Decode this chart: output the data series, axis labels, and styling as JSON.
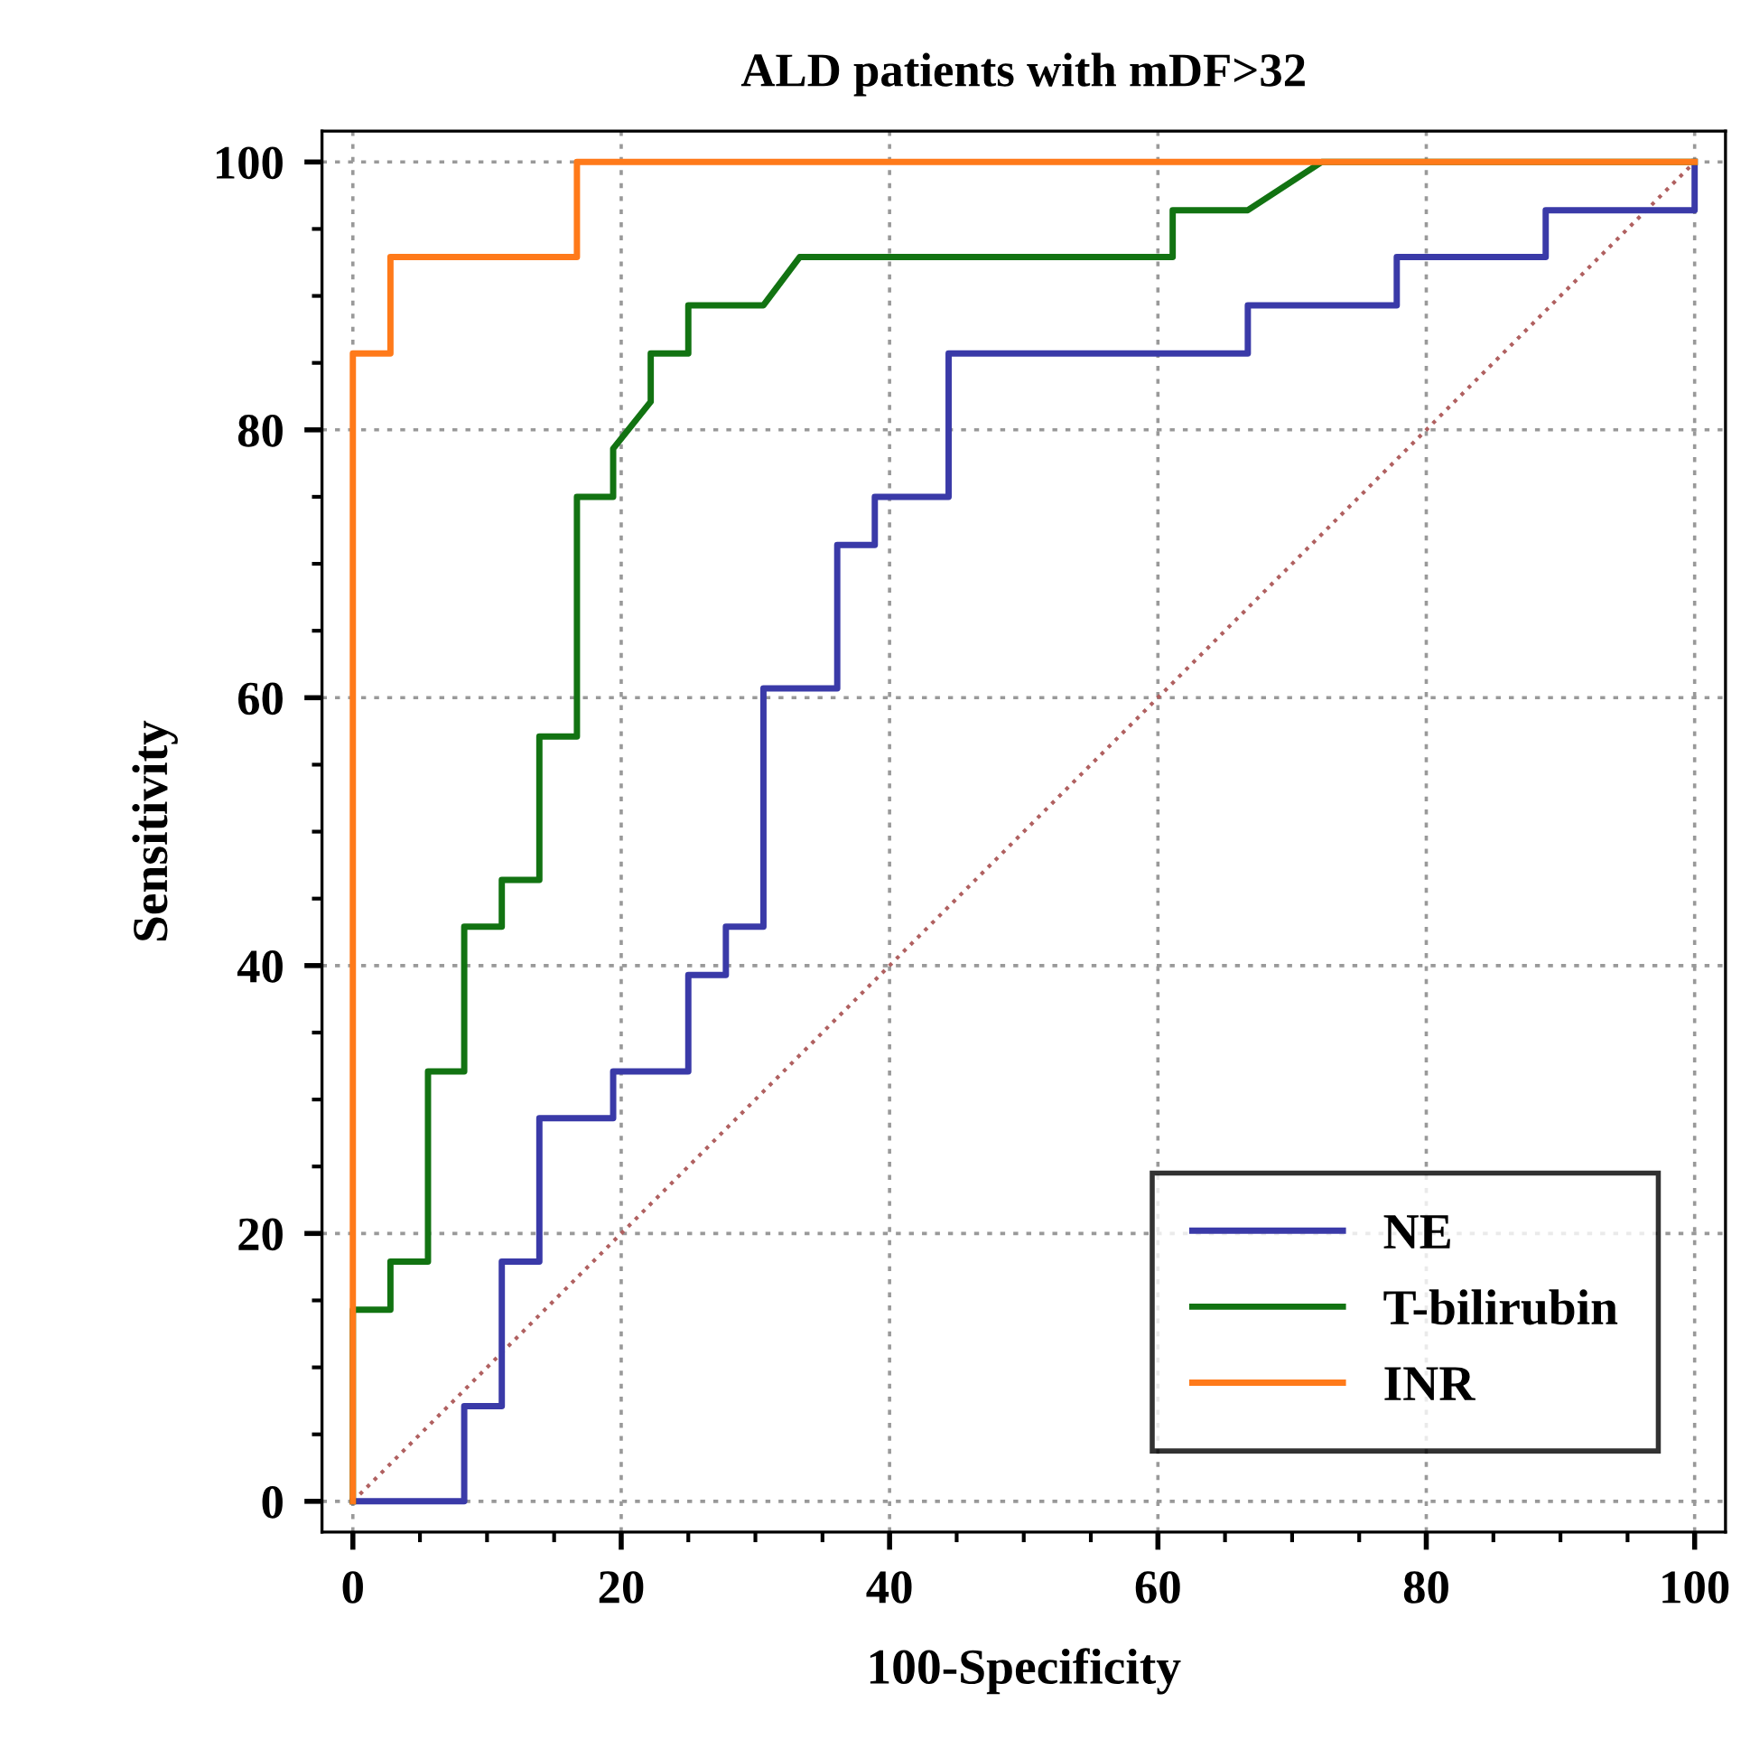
{
  "chart_data": {
    "type": "line",
    "title": "ALD patients with mDF>32",
    "xlabel": "100-Specificity",
    "ylabel": "Sensitivity",
    "xlim": [
      -2.3,
      102.3
    ],
    "ylim": [
      -2.3,
      102.3
    ],
    "xticks": [
      0,
      20,
      40,
      60,
      80,
      100
    ],
    "yticks": [
      0,
      20,
      40,
      60,
      80,
      100
    ],
    "grid": true,
    "legend": "bottom right",
    "marker": "none",
    "line_style": "solid",
    "series": [
      {
        "name": "NE",
        "color": "#3a3aa8",
        "x": [
          0,
          8.3,
          8.3,
          11.1,
          11.1,
          13.9,
          13.9,
          19.4,
          19.4,
          25,
          25,
          27.8,
          27.8,
          30.6,
          30.6,
          36.1,
          36.1,
          38.9,
          38.9,
          44.4,
          44.4,
          66.7,
          66.7,
          77.8,
          77.8,
          88.9,
          88.9,
          100,
          100
        ],
        "values": [
          0,
          0,
          7.1,
          7.1,
          17.9,
          17.9,
          28.6,
          28.6,
          32.1,
          32.1,
          39.3,
          39.3,
          42.9,
          42.9,
          60.7,
          60.7,
          71.4,
          71.4,
          75,
          75,
          85.7,
          85.7,
          89.3,
          89.3,
          92.9,
          92.9,
          96.4,
          96.4,
          100
        ]
      },
      {
        "name": "T-bilirubin",
        "color": "#127312",
        "x": [
          0,
          0,
          2.8,
          2.8,
          5.6,
          5.6,
          8.3,
          8.3,
          11.1,
          11.1,
          13.9,
          13.9,
          16.7,
          16.7,
          19.4,
          19.4,
          22.2,
          22.2,
          25,
          25,
          30.6,
          33.3,
          61.1,
          61.1,
          66.7,
          72.2,
          100
        ],
        "values": [
          0,
          14.3,
          14.3,
          17.9,
          17.9,
          32.1,
          32.1,
          42.9,
          42.9,
          46.4,
          46.4,
          57.1,
          57.1,
          75,
          75,
          78.6,
          82.1,
          85.7,
          85.7,
          89.3,
          89.3,
          92.9,
          92.9,
          96.4,
          96.4,
          100,
          100
        ]
      },
      {
        "name": "INR",
        "color": "#ff7a1a",
        "x": [
          0,
          0,
          2.8,
          2.8,
          16.7,
          16.7,
          100
        ],
        "values": [
          0,
          85.7,
          85.7,
          92.9,
          92.9,
          100,
          100
        ]
      },
      {
        "color": "#b06060",
        "line_style": "dotted",
        "x": [
          0,
          100
        ],
        "values": [
          0,
          100
        ]
      }
    ]
  }
}
